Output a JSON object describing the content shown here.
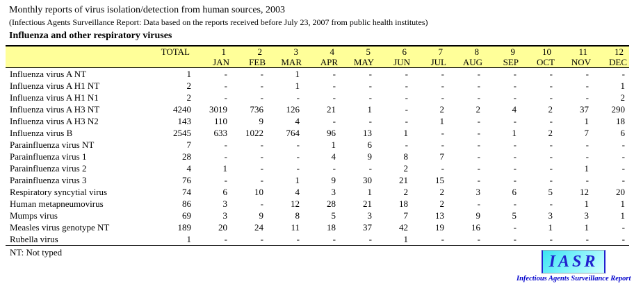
{
  "page": {
    "title_line1": "Monthly reports of virus isolation/detection from human sources, 2003",
    "title_line2": "(Infectious Agents Surveillance Report: Data based on the reports received before July 23, 2007 from public health institutes)",
    "section_title": "Influenza and other respiratory viruses"
  },
  "table": {
    "header_bg": "#FFFF99",
    "header": {
      "total_label": "TOTAL",
      "month_numbers": [
        "1",
        "2",
        "3",
        "4",
        "5",
        "6",
        "7",
        "8",
        "9",
        "10",
        "11",
        "12"
      ],
      "month_names": [
        "JAN",
        "FEB",
        "MAR",
        "APR",
        "MAY",
        "JUN",
        "JUL",
        "AUG",
        "SEP",
        "OCT",
        "NOV",
        "DEC"
      ]
    },
    "rows": [
      {
        "label": "Influenza virus A NT",
        "total": "1",
        "months": [
          "-",
          "-",
          "1",
          "-",
          "-",
          "-",
          "-",
          "-",
          "-",
          "-",
          "-",
          "-"
        ]
      },
      {
        "label": "Influenza virus A H1 NT",
        "total": "2",
        "months": [
          "-",
          "-",
          "1",
          "-",
          "-",
          "-",
          "-",
          "-",
          "-",
          "-",
          "-",
          "1"
        ]
      },
      {
        "label": "Influenza virus A H1 N1",
        "total": "2",
        "months": [
          "-",
          "-",
          "-",
          "-",
          "-",
          "-",
          "-",
          "-",
          "-",
          "-",
          "-",
          "2"
        ]
      },
      {
        "label": "Influenza virus A H3 NT",
        "total": "4240",
        "months": [
          "3019",
          "736",
          "126",
          "21",
          "1",
          "-",
          "2",
          "2",
          "4",
          "2",
          "37",
          "290"
        ]
      },
      {
        "label": "Influenza virus A H3 N2",
        "total": "143",
        "months": [
          "110",
          "9",
          "4",
          "-",
          "-",
          "-",
          "1",
          "-",
          "-",
          "-",
          "1",
          "18"
        ]
      },
      {
        "label": "Influenza virus B",
        "total": "2545",
        "months": [
          "633",
          "1022",
          "764",
          "96",
          "13",
          "1",
          "-",
          "-",
          "1",
          "2",
          "7",
          "6"
        ]
      },
      {
        "label": "Parainfluenza virus NT",
        "total": "7",
        "months": [
          "-",
          "-",
          "-",
          "1",
          "6",
          "-",
          "-",
          "-",
          "-",
          "-",
          "-",
          "-"
        ]
      },
      {
        "label": "Parainfluenza virus 1",
        "total": "28",
        "months": [
          "-",
          "-",
          "-",
          "4",
          "9",
          "8",
          "7",
          "-",
          "-",
          "-",
          "-",
          "-"
        ]
      },
      {
        "label": "Parainfluenza virus 2",
        "total": "4",
        "months": [
          "1",
          "-",
          "-",
          "-",
          "-",
          "2",
          "-",
          "-",
          "-",
          "-",
          "1",
          "-"
        ]
      },
      {
        "label": "Parainfluenza virus 3",
        "total": "76",
        "months": [
          "-",
          "-",
          "1",
          "9",
          "30",
          "21",
          "15",
          "-",
          "-",
          "-",
          "-",
          "-"
        ]
      },
      {
        "label": "Respiratory syncytial virus",
        "total": "74",
        "months": [
          "6",
          "10",
          "4",
          "3",
          "1",
          "2",
          "2",
          "3",
          "6",
          "5",
          "12",
          "20"
        ]
      },
      {
        "label": "Human metapneumovirus",
        "total": "86",
        "months": [
          "3",
          "-",
          "12",
          "28",
          "21",
          "18",
          "2",
          "-",
          "-",
          "-",
          "1",
          "1"
        ]
      },
      {
        "label": "Mumps virus",
        "total": "69",
        "months": [
          "3",
          "9",
          "8",
          "5",
          "3",
          "7",
          "13",
          "9",
          "5",
          "3",
          "3",
          "1"
        ]
      },
      {
        "label": "Measles virus genotype NT",
        "total": "189",
        "months": [
          "20",
          "24",
          "11",
          "18",
          "37",
          "42",
          "19",
          "16",
          "-",
          "1",
          "1",
          "-"
        ]
      },
      {
        "label": "Rubella virus",
        "total": "1",
        "months": [
          "-",
          "-",
          "-",
          "-",
          "-",
          "1",
          "-",
          "-",
          "-",
          "-",
          "-",
          "-"
        ]
      }
    ]
  },
  "footnote": "NT: Not typed",
  "logo": {
    "text": "IASR",
    "caption": "Infectious Agents Surveillance Report",
    "box_color_start": "#3BE2F2",
    "box_color_end": "#CFFFFF",
    "text_color": "#2121CE",
    "caption_color": "#0000CC"
  }
}
